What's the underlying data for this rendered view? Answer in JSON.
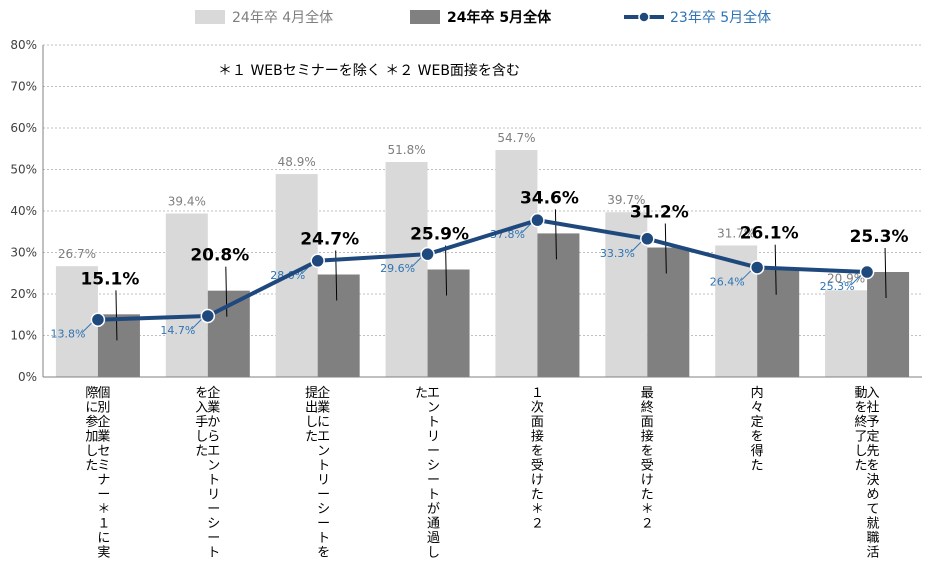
{
  "chart_data": {
    "type": "bar",
    "categories": [
      "個別企業セミナー＊１に実際に参加した",
      "企業からエントリーシートを入手した",
      "企業にエントリーシートを提出した",
      "エントリーシートが通過した",
      "１次面接を受けた＊２",
      "最終面接を受けた＊２",
      "内々定を得た",
      "入社予定先を決めて就職活動を終了した"
    ],
    "series": [
      {
        "name": "24年卒 4月全体",
        "type": "bar",
        "color": "#d9d9d9",
        "values": [
          26.7,
          39.4,
          48.9,
          51.8,
          54.7,
          39.7,
          31.7,
          20.9
        ],
        "labels": [
          "26.7%",
          "39.4%",
          "48.9%",
          "51.8%",
          "54.7%",
          "39.7%",
          "31.7%",
          "20.9%"
        ]
      },
      {
        "name": "24年卒 5月全体",
        "type": "bar",
        "color": "#808080",
        "values": [
          15.1,
          20.8,
          24.7,
          25.9,
          34.6,
          31.2,
          26.1,
          25.3
        ],
        "labels": [
          "15.1%",
          "20.8%",
          "24.7%",
          "25.9%",
          "34.6%",
          "31.2%",
          "26.1%",
          "25.3%"
        ]
      },
      {
        "name": "23年卒 5月全体",
        "type": "line",
        "color": "#1f497d",
        "values": [
          13.8,
          14.7,
          28.0,
          29.6,
          37.8,
          33.3,
          26.4,
          25.3
        ],
        "labels": [
          "13.8%",
          "14.7%",
          "28.0%",
          "29.6%",
          "37.8%",
          "33.3%",
          "26.4%",
          "25.3%"
        ]
      }
    ],
    "y_ticks": [
      "0%",
      "10%",
      "20%",
      "30%",
      "40%",
      "50%",
      "60%",
      "70%",
      "80%"
    ],
    "ylim": [
      0,
      80
    ],
    "grid": true,
    "legend": "top",
    "annotation": "＊１ WEBセミナーを除く ＊２ WEB面接を含む"
  }
}
